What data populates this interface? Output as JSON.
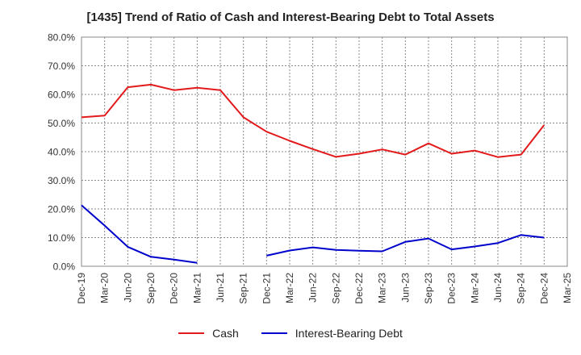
{
  "chart_data": {
    "type": "line",
    "title": "[1435]  Trend of Ratio of Cash and Interest-Bearing Debt to Total Assets",
    "xlabel": "",
    "ylabel": "",
    "ylim": [
      0,
      80
    ],
    "yticks": [
      0,
      10,
      20,
      30,
      40,
      50,
      60,
      70,
      80
    ],
    "ytick_labels": [
      "0.0%",
      "10.0%",
      "20.0%",
      "30.0%",
      "40.0%",
      "50.0%",
      "60.0%",
      "70.0%",
      "80.0%"
    ],
    "x_labels": [
      "Dec-19",
      "Mar-20",
      "Jun-20",
      "Sep-20",
      "Dec-20",
      "Mar-21",
      "Jun-21",
      "Sep-21",
      "Dec-21",
      "Mar-22",
      "Jun-22",
      "Sep-22",
      "Dec-22",
      "Mar-23",
      "Jun-23",
      "Sep-23",
      "Dec-23",
      "Mar-24",
      "Jun-24",
      "Sep-24",
      "Dec-24",
      "Mar-25"
    ],
    "grid": true,
    "legend_position": "bottom-center",
    "series": [
      {
        "name": "Cash",
        "color": "#e31a1c",
        "values": [
          52.0,
          52.6,
          62.5,
          63.4,
          61.5,
          62.3,
          61.5,
          52.0,
          47.0,
          43.8,
          40.9,
          38.2,
          39.3,
          40.8,
          39.0,
          42.9,
          39.3,
          40.4,
          38.1,
          39.0,
          49.3,
          null
        ]
      },
      {
        "name": "Interest-Bearing Debt",
        "color": "#0000cc",
        "values": [
          21.3,
          14.2,
          6.8,
          3.3,
          2.3,
          1.2,
          null,
          null,
          3.7,
          5.5,
          6.6,
          5.7,
          5.4,
          5.2,
          8.5,
          9.7,
          5.9,
          6.9,
          8.1,
          10.9,
          10.0,
          null
        ]
      }
    ]
  }
}
